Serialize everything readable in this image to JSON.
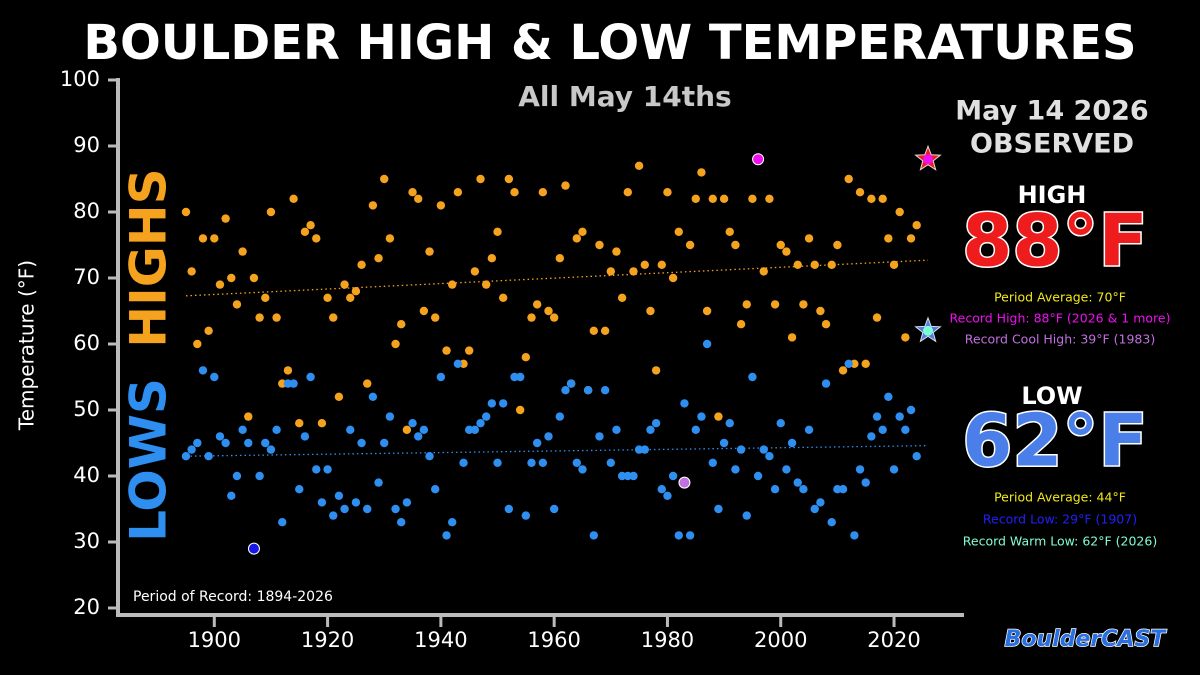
{
  "chart_data": {
    "type": "scatter",
    "title": "BOULDER HIGH & LOW TEMPERATURES",
    "subtitle": "All May 14ths",
    "y_label": "Temperature (°F)",
    "record_period": "Period of Record: 1894-2026",
    "logo": "BoulderCAST",
    "xlim": [
      1883,
      2032
    ],
    "ylim": [
      20,
      100
    ],
    "xticks": [
      1900,
      1920,
      1940,
      1960,
      1980,
      2000,
      2020
    ],
    "yticks": [
      20,
      30,
      40,
      50,
      60,
      70,
      80,
      90,
      100
    ],
    "series": [
      {
        "name": "HIGHS",
        "color": "#f5a31f",
        "marker": "dot",
        "x": [
          1895,
          1896,
          1897,
          1898,
          1899,
          1900,
          1901,
          1902,
          1903,
          1904,
          1905,
          1906,
          1907,
          1908,
          1909,
          1910,
          1911,
          1912,
          1913,
          1914,
          1915,
          1916,
          1917,
          1918,
          1919,
          1920,
          1921,
          1922,
          1923,
          1924,
          1925,
          1926,
          1927,
          1928,
          1929,
          1930,
          1931,
          1932,
          1933,
          1934,
          1935,
          1936,
          1937,
          1938,
          1939,
          1940,
          1941,
          1942,
          1943,
          1944,
          1945,
          1946,
          1947,
          1948,
          1949,
          1950,
          1951,
          1952,
          1953,
          1954,
          1955,
          1956,
          1957,
          1958,
          1959,
          1960,
          1961,
          1962,
          1963,
          1964,
          1965,
          1966,
          1967,
          1968,
          1969,
          1970,
          1971,
          1972,
          1973,
          1974,
          1975,
          1976,
          1977,
          1978,
          1979,
          1980,
          1981,
          1982,
          1984,
          1985,
          1986,
          1987,
          1988,
          1989,
          1990,
          1991,
          1992,
          1993,
          1994,
          1995,
          1997,
          1998,
          1999,
          2000,
          2001,
          2002,
          2003,
          2004,
          2005,
          2006,
          2007,
          2008,
          2009,
          2010,
          2011,
          2012,
          2013,
          2014,
          2015,
          2016,
          2017,
          2018,
          2019,
          2020,
          2021,
          2022,
          2023,
          2024
        ],
        "values": [
          80,
          71,
          60,
          76,
          62,
          76,
          69,
          79,
          70,
          66,
          74,
          49,
          70,
          64,
          67,
          80,
          64,
          54,
          56,
          82,
          48,
          77,
          78,
          76,
          48,
          67,
          64,
          52,
          69,
          67,
          68,
          72,
          54,
          81,
          73,
          85,
          76,
          60,
          63,
          47,
          83,
          82,
          65,
          74,
          64,
          81,
          59,
          69,
          83,
          57,
          59,
          71,
          85,
          69,
          73,
          77,
          67,
          85,
          83,
          50,
          58,
          64,
          66,
          83,
          65,
          64,
          73,
          84,
          54,
          76,
          77,
          53,
          62,
          75,
          62,
          71,
          74,
          67,
          83,
          71,
          87,
          72,
          65,
          56,
          72,
          83,
          70,
          77,
          75,
          82,
          86,
          65,
          82,
          49,
          82,
          77,
          75,
          63,
          66,
          82,
          71,
          82,
          66,
          75,
          74,
          61,
          72,
          66,
          76,
          72,
          65,
          63,
          72,
          75,
          56,
          85,
          57,
          83,
          57,
          82,
          64,
          82,
          76,
          72,
          80,
          61,
          76,
          78
        ]
      },
      {
        "name": "LOWS",
        "color": "#2e8ff0",
        "marker": "dot",
        "x": [
          1895,
          1896,
          1897,
          1898,
          1899,
          1900,
          1901,
          1902,
          1903,
          1904,
          1905,
          1906,
          1908,
          1909,
          1910,
          1911,
          1912,
          1913,
          1914,
          1915,
          1916,
          1917,
          1918,
          1919,
          1920,
          1921,
          1922,
          1923,
          1924,
          1925,
          1926,
          1927,
          1928,
          1929,
          1930,
          1931,
          1932,
          1933,
          1934,
          1935,
          1936,
          1937,
          1938,
          1939,
          1940,
          1941,
          1942,
          1943,
          1944,
          1945,
          1946,
          1947,
          1948,
          1949,
          1950,
          1951,
          1952,
          1953,
          1954,
          1955,
          1956,
          1957,
          1958,
          1959,
          1960,
          1961,
          1962,
          1963,
          1964,
          1965,
          1966,
          1967,
          1968,
          1969,
          1970,
          1971,
          1972,
          1973,
          1974,
          1975,
          1976,
          1977,
          1978,
          1979,
          1980,
          1981,
          1982,
          1983,
          1984,
          1985,
          1986,
          1987,
          1988,
          1989,
          1990,
          1991,
          1992,
          1993,
          1994,
          1995,
          1996,
          1997,
          1998,
          1999,
          2000,
          2001,
          2002,
          2003,
          2004,
          2005,
          2006,
          2007,
          2008,
          2009,
          2010,
          2011,
          2012,
          2013,
          2014,
          2015,
          2016,
          2017,
          2018,
          2019,
          2020,
          2021,
          2022,
          2023,
          2024
        ],
        "values": [
          43,
          44,
          45,
          56,
          43,
          55,
          46,
          45,
          37,
          40,
          47,
          45,
          40,
          45,
          44,
          47,
          33,
          54,
          54,
          38,
          46,
          55,
          41,
          36,
          41,
          34,
          37,
          35,
          47,
          36,
          45,
          35,
          52,
          39,
          45,
          49,
          35,
          33,
          36,
          48,
          46,
          47,
          43,
          38,
          55,
          31,
          33,
          57,
          42,
          47,
          47,
          48,
          49,
          51,
          42,
          51,
          35,
          55,
          55,
          34,
          42,
          45,
          42,
          46,
          35,
          49,
          53,
          54,
          42,
          41,
          53,
          31,
          46,
          53,
          42,
          47,
          40,
          40,
          40,
          44,
          44,
          47,
          48,
          38,
          37,
          40,
          31,
          51,
          31,
          47,
          49,
          60,
          42,
          35,
          45,
          48,
          41,
          44,
          34,
          55,
          40,
          44,
          43,
          38,
          48,
          41,
          45,
          39,
          38,
          47,
          35,
          36,
          54,
          33,
          38,
          38,
          57,
          31,
          41,
          39,
          46,
          49,
          47,
          52,
          41,
          49,
          47,
          50,
          43
        ]
      },
      {
        "color": "#ee10ee",
        "marker": "record",
        "x": [
          1996
        ],
        "values": [
          88
        ]
      },
      {
        "color": "#1818e6",
        "marker": "record",
        "x": [
          1907
        ],
        "values": [
          29
        ]
      },
      {
        "color": "#c070e0",
        "marker": "record",
        "x": [
          1983
        ],
        "values": [
          39
        ]
      },
      {
        "color": "#ee1c1c",
        "marker": "star",
        "x": [
          2026,
          2026
        ],
        "values": [
          88,
          62
        ],
        "value_labels": [
          "88°F",
          "62°F"
        ]
      }
    ],
    "trend_lines": [
      {
        "color": "#f5a31f",
        "x": [
          1895,
          2026
        ],
        "values": [
          67.3,
          72.7
        ]
      },
      {
        "color": "#2e8ff0",
        "x": [
          1895,
          2026
        ],
        "values": [
          43,
          44.6
        ]
      }
    ],
    "panel": {
      "date": "May 14 2026",
      "status": "OBSERVED",
      "high_heading": "HIGH",
      "high_notes": [
        "Period Average: 70°F",
        "Record High: 88°F (2026 & 1 more)",
        "Record Cool High: 39°F (1983)"
      ],
      "low_heading": "LOW",
      "low_notes": [
        "Period Average: 44°F",
        "Record Low: 29°F (1907)",
        "Record Warm Low: 62°F (2026)"
      ]
    }
  }
}
